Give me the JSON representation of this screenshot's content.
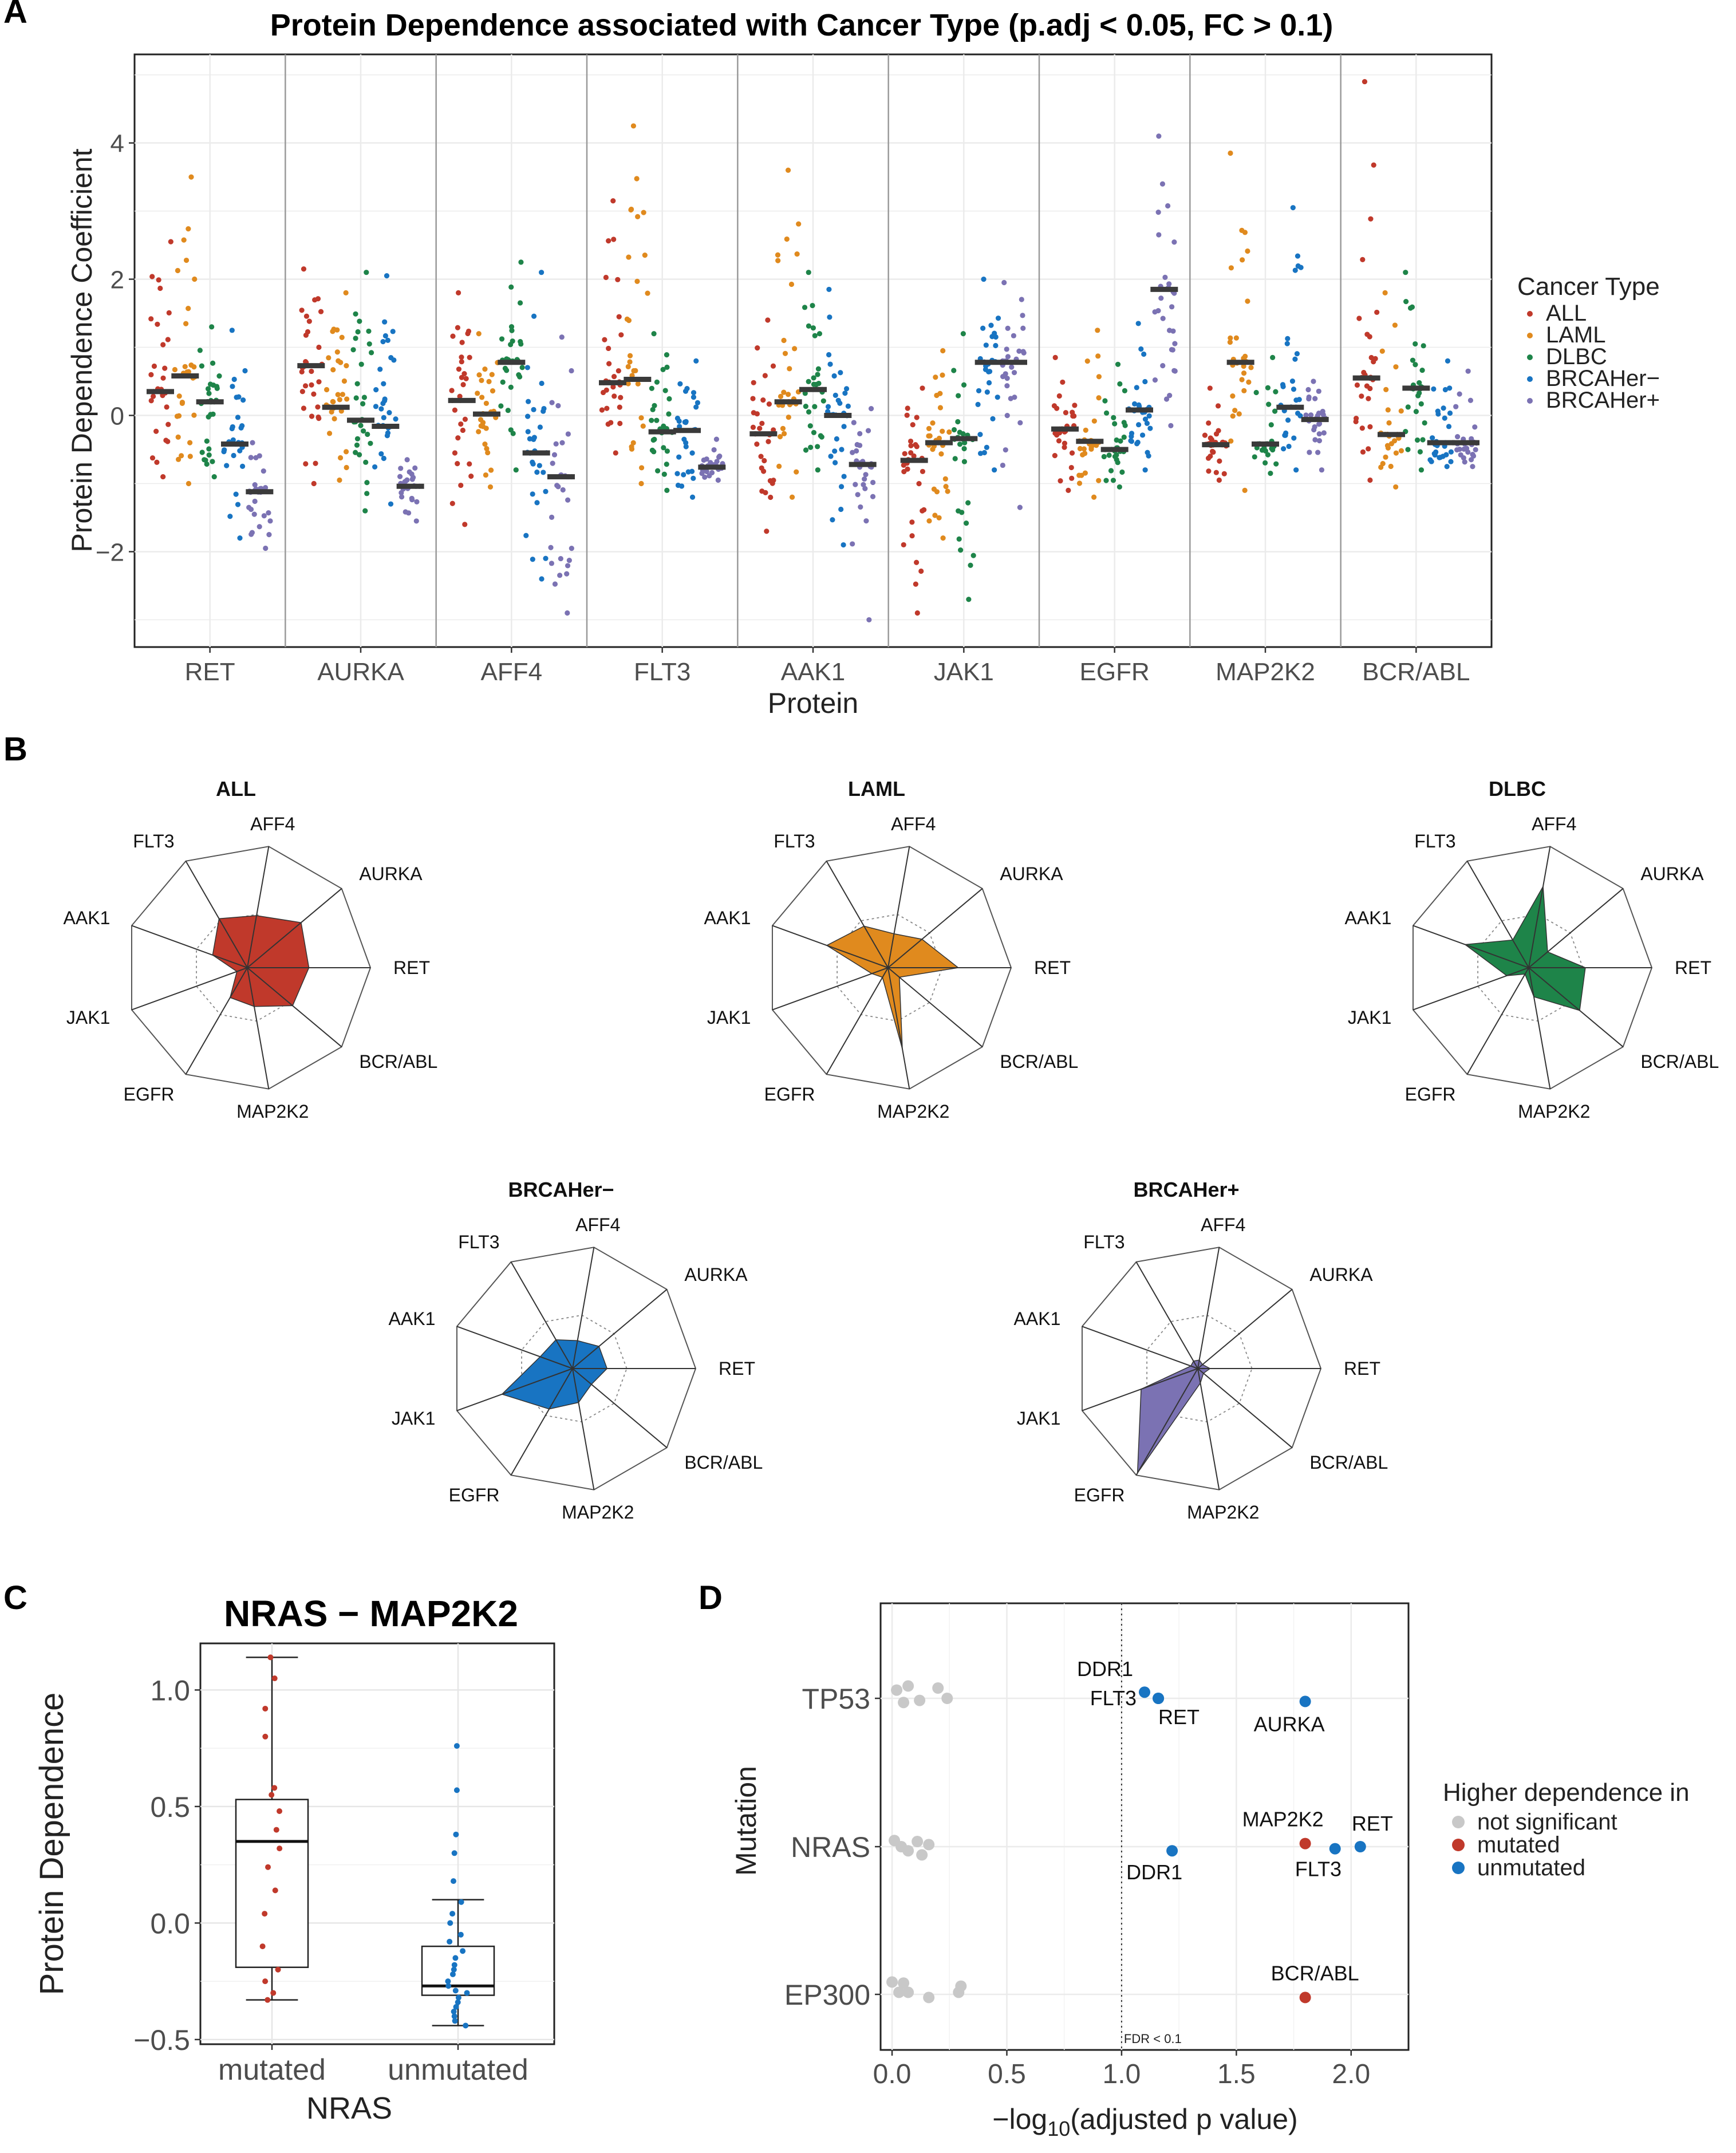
{
  "panel_letters": [
    "A",
    "B",
    "C",
    "D"
  ],
  "colors": {
    "ALL": "#C0392B",
    "LAML": "#E08A1E",
    "DLBC": "#1E8449",
    "BRCAHer−": "#1874C2",
    "BRCAHer+": "#7B72B3",
    "grey": "#C8C8C8",
    "median": "#3A3A3A"
  },
  "chart_data": [
    {
      "panel": "A",
      "type": "scatter",
      "title": "Protein Dependence associated with Cancer Type (p.adj < 0.05, FC > 0.1)",
      "xlabel": "Protein",
      "ylabel": "Protein Dependence Coefficient",
      "ylim": [
        -3.4,
        5.3
      ],
      "yticks": [
        -2,
        0,
        2,
        4
      ],
      "legend_title": "Cancer Type",
      "legend_position": "right",
      "grid": true,
      "categories": [
        "RET",
        "AURKA",
        "AFF4",
        "FLT3",
        "AAK1",
        "JAK1",
        "EGFR",
        "MAP2K2",
        "BCR/ABL"
      ],
      "series": [
        {
          "name": "ALL",
          "medians": [
            0.35,
            0.73,
            0.22,
            0.48,
            -0.27,
            -0.66,
            -0.2,
            -0.43,
            0.55
          ],
          "ranges": [
            [
              -0.9,
              2.55
            ],
            [
              -1.0,
              2.15
            ],
            [
              -1.6,
              1.8
            ],
            [
              -0.55,
              3.15
            ],
            [
              -1.7,
              1.4
            ],
            [
              -2.9,
              0.4
            ],
            [
              -1.1,
              0.85
            ],
            [
              -0.95,
              0.4
            ],
            [
              -0.95,
              4.9
            ]
          ]
        },
        {
          "name": "LAML",
          "medians": [
            0.58,
            0.12,
            0.02,
            0.53,
            0.2,
            -0.4,
            -0.38,
            0.78,
            -0.28
          ],
          "ranges": [
            [
              -1.0,
              3.5
            ],
            [
              -0.95,
              1.8
            ],
            [
              -1.05,
              1.2
            ],
            [
              -1.0,
              4.25
            ],
            [
              -1.2,
              3.6
            ],
            [
              -1.8,
              0.95
            ],
            [
              -1.2,
              1.25
            ],
            [
              -1.1,
              3.85
            ],
            [
              -1.05,
              1.8
            ]
          ]
        },
        {
          "name": "DLBC",
          "medians": [
            0.2,
            -0.07,
            0.78,
            -0.24,
            0.38,
            -0.34,
            -0.5,
            -0.42,
            0.4
          ],
          "ranges": [
            [
              -0.9,
              1.3
            ],
            [
              -1.4,
              2.1
            ],
            [
              -0.8,
              2.25
            ],
            [
              -1.1,
              1.2
            ],
            [
              -0.8,
              2.1
            ],
            [
              -2.7,
              1.2
            ],
            [
              -1.05,
              0.75
            ],
            [
              -0.85,
              0.85
            ],
            [
              -0.8,
              2.1
            ]
          ]
        },
        {
          "name": "BRCAHer−",
          "medians": [
            -0.42,
            -0.16,
            -0.55,
            -0.22,
            0.0,
            0.78,
            0.08,
            0.12,
            -0.4
          ],
          "ranges": [
            [
              -1.8,
              1.25
            ],
            [
              -1.3,
              2.05
            ],
            [
              -2.4,
              2.1
            ],
            [
              -1.2,
              0.8
            ],
            [
              -1.9,
              1.85
            ],
            [
              -0.8,
              2.0
            ],
            [
              -0.8,
              1.35
            ],
            [
              -0.8,
              3.05
            ],
            [
              -0.75,
              0.8
            ]
          ]
        },
        {
          "name": "BRCAHer+",
          "medians": [
            -1.12,
            -1.04,
            -0.9,
            -0.76,
            -0.72,
            0.78,
            1.85,
            -0.06,
            -0.4
          ],
          "ranges": [
            [
              -1.95,
              -0.4
            ],
            [
              -1.55,
              -0.65
            ],
            [
              -2.9,
              1.15
            ],
            [
              -0.95,
              -0.35
            ],
            [
              -3.0,
              0.1
            ],
            [
              -1.35,
              1.95
            ],
            [
              -0.15,
              4.1
            ],
            [
              -0.8,
              0.5
            ],
            [
              -0.75,
              0.65
            ]
          ]
        }
      ]
    },
    {
      "panel": "B",
      "type": "radar",
      "axes": [
        "RET",
        "AURKA",
        "AFF4",
        "FLT3",
        "AAK1",
        "JAK1",
        "EGFR",
        "MAP2K2",
        "BCR/ABL"
      ],
      "series": [
        {
          "name": "ALL",
          "values": [
            0.5,
            0.57,
            0.43,
            0.46,
            0.3,
            0.09,
            0.28,
            0.32,
            0.48
          ]
        },
        {
          "name": "LAML",
          "values": [
            0.57,
            0.36,
            0.28,
            0.39,
            0.53,
            0.14,
            0.09,
            0.67,
            0.12
          ]
        },
        {
          "name": "DLBC",
          "values": [
            0.46,
            0.2,
            0.67,
            0.26,
            0.55,
            0.19,
            0.06,
            0.24,
            0.54
          ]
        },
        {
          "name": "BRCAHer−",
          "values": [
            0.28,
            0.28,
            0.23,
            0.27,
            0.28,
            0.61,
            0.38,
            0.28,
            0.2
          ]
        },
        {
          "name": "BRCAHer+",
          "values": [
            0.1,
            0.05,
            0.07,
            0.07,
            0.06,
            0.49,
            0.98,
            0.12,
            0.06
          ]
        }
      ]
    },
    {
      "panel": "C",
      "type": "box",
      "title": "NRAS − MAP2K2",
      "xlabel": "NRAS",
      "ylabel": "Protein Dependence",
      "ylim": [
        -0.52,
        1.2
      ],
      "yticks": [
        -0.5,
        0.0,
        0.5,
        1.0
      ],
      "categories": [
        "mutated",
        "unmutated"
      ],
      "boxes": [
        {
          "name": "mutated",
          "whisker_low": -0.33,
          "q1": -0.19,
          "median": 0.35,
          "q3": 0.53,
          "whisker_high": 1.14,
          "points": [
            1.14,
            1.05,
            0.92,
            0.8,
            0.58,
            0.55,
            0.48,
            0.4,
            0.32,
            0.24,
            0.14,
            0.04,
            -0.1,
            -0.2,
            -0.25,
            -0.3,
            -0.33
          ]
        },
        {
          "name": "unmutated",
          "whisker_low": -0.44,
          "q1": -0.31,
          "median": -0.27,
          "q3": -0.1,
          "whisker_high": 0.1,
          "points": [
            0.76,
            0.57,
            0.38,
            0.3,
            0.18,
            0.09,
            0.04,
            0.0,
            -0.05,
            -0.08,
            -0.12,
            -0.15,
            -0.18,
            -0.2,
            -0.22,
            -0.25,
            -0.27,
            -0.29,
            -0.3,
            -0.32,
            -0.34,
            -0.36,
            -0.38,
            -0.4,
            -0.42,
            -0.44
          ]
        }
      ]
    },
    {
      "panel": "D",
      "type": "scatter",
      "xlabel_pre": "−log",
      "xlabel_sub": "10",
      "xlabel_post": "(adjusted p value)",
      "ylabel": "Mutation",
      "xlim": [
        -0.05,
        2.25
      ],
      "xticks": [
        0.0,
        0.5,
        1.0,
        1.5,
        2.0
      ],
      "categories": [
        "TP53",
        "NRAS",
        "EP300"
      ],
      "threshold": 1.0,
      "threshold_label": "FDR < 0.1",
      "legend_title": "Higher dependence in",
      "legend_position": "right",
      "legend": [
        "not significant",
        "mutated",
        "unmutated"
      ],
      "grey_points": [
        {
          "row": "TP53",
          "x": 0.02,
          "dy": 0.08
        },
        {
          "row": "TP53",
          "x": 0.05,
          "dy": -0.04
        },
        {
          "row": "TP53",
          "x": 0.07,
          "dy": 0.12
        },
        {
          "row": "TP53",
          "x": 0.12,
          "dy": -0.02
        },
        {
          "row": "TP53",
          "x": 0.2,
          "dy": 0.1
        },
        {
          "row": "TP53",
          "x": 0.24,
          "dy": 0.0
        },
        {
          "row": "NRAS",
          "x": 0.01,
          "dy": 0.06
        },
        {
          "row": "NRAS",
          "x": 0.04,
          "dy": 0.0
        },
        {
          "row": "NRAS",
          "x": 0.07,
          "dy": -0.04
        },
        {
          "row": "NRAS",
          "x": 0.11,
          "dy": 0.05
        },
        {
          "row": "NRAS",
          "x": 0.13,
          "dy": -0.08
        },
        {
          "row": "NRAS",
          "x": 0.16,
          "dy": 0.02
        },
        {
          "row": "EP300",
          "x": 0.0,
          "dy": 0.12
        },
        {
          "row": "EP300",
          "x": 0.03,
          "dy": 0.02
        },
        {
          "row": "EP300",
          "x": 0.05,
          "dy": 0.11
        },
        {
          "row": "EP300",
          "x": 0.07,
          "dy": 0.02
        },
        {
          "row": "EP300",
          "x": 0.16,
          "dy": -0.03
        },
        {
          "row": "EP300",
          "x": 0.29,
          "dy": 0.02
        },
        {
          "row": "EP300",
          "x": 0.3,
          "dy": 0.08
        }
      ],
      "points": [
        {
          "row": "TP53",
          "x": 1.1,
          "dy": 0.06,
          "group": "unmutated",
          "label": "DDR1"
        },
        {
          "row": "TP53",
          "x": 1.16,
          "dy": 0.0,
          "group": "unmutated",
          "label": "FLT3"
        },
        {
          "row": "TP53",
          "x": 1.16,
          "dy": 0.0,
          "group": "unmutated",
          "label": "RET"
        },
        {
          "row": "TP53",
          "x": 1.8,
          "dy": -0.03,
          "group": "unmutated",
          "label": "AURKA"
        },
        {
          "row": "NRAS",
          "x": 1.8,
          "dy": 0.03,
          "group": "mutated",
          "label": "MAP2K2"
        },
        {
          "row": "NRAS",
          "x": 1.93,
          "dy": -0.02,
          "group": "unmutated",
          "label": "FLT3"
        },
        {
          "row": "NRAS",
          "x": 2.04,
          "dy": 0.0,
          "group": "unmutated",
          "label": "RET"
        },
        {
          "row": "NRAS",
          "x": 1.22,
          "dy": -0.04,
          "group": "unmutated",
          "label": "DDR1"
        },
        {
          "row": "EP300",
          "x": 1.8,
          "dy": -0.03,
          "group": "mutated",
          "label": "BCR/ABL"
        }
      ]
    }
  ]
}
